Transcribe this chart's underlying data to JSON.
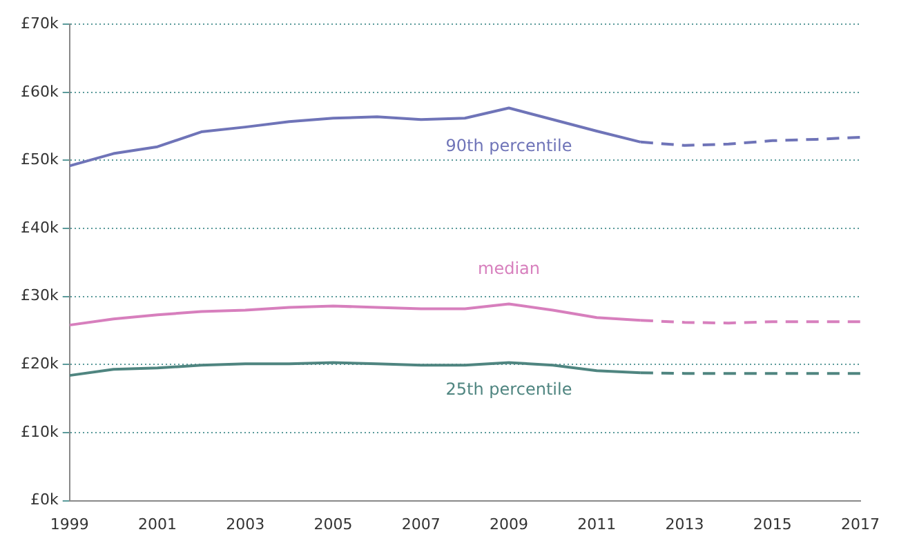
{
  "chart_data": {
    "type": "line",
    "xlim": [
      1999,
      2017
    ],
    "xticks": [
      1999,
      2001,
      2003,
      2005,
      2007,
      2009,
      2011,
      2013,
      2015,
      2017
    ],
    "ylim": [
      0,
      70
    ],
    "yticks": [
      {
        "value": 0,
        "label": "£0k"
      },
      {
        "value": 10,
        "label": "£10k"
      },
      {
        "value": 20,
        "label": "£20k"
      },
      {
        "value": 30,
        "label": "£30k"
      },
      {
        "value": 40,
        "label": "£40k"
      },
      {
        "value": 50,
        "label": "£50k"
      },
      {
        "value": 60,
        "label": "£60k"
      },
      {
        "value": 70,
        "label": "£70k"
      }
    ],
    "grid": "y",
    "legend": false,
    "marker": "none",
    "series": [
      {
        "name": "90th percentile",
        "color": "#6f74b8",
        "x": [
          1999,
          2000,
          2001,
          2002,
          2003,
          2004,
          2005,
          2006,
          2007,
          2008,
          2009,
          2010,
          2011,
          2012
        ],
        "values": [
          49.2,
          51,
          52,
          54.2,
          54.9,
          55.7,
          56.2,
          56.4,
          56,
          56.2,
          57.7,
          56,
          54.3,
          52.7
        ],
        "line_style": "solid"
      },
      {
        "name": "median",
        "color": "#d77fbd",
        "x": [
          1999,
          2000,
          2001,
          2002,
          2003,
          2004,
          2005,
          2006,
          2007,
          2008,
          2009,
          2010,
          2011,
          2012
        ],
        "values": [
          25.8,
          26.7,
          27.3,
          27.8,
          28,
          28.4,
          28.6,
          28.4,
          28.2,
          28.2,
          28.9,
          28,
          26.9,
          26.5
        ],
        "line_style": "solid"
      },
      {
        "name": "25th percentile",
        "color": "#4f8580",
        "x": [
          1999,
          2000,
          2001,
          2002,
          2003,
          2004,
          2005,
          2006,
          2007,
          2008,
          2009,
          2010,
          2011,
          2012
        ],
        "values": [
          18.4,
          19.3,
          19.5,
          19.9,
          20.1,
          20.1,
          20.3,
          20.1,
          19.9,
          19.9,
          20.3,
          19.9,
          19.1,
          18.8
        ],
        "line_style": "solid"
      },
      {
        "color": "#6f74b8",
        "x": [
          2012,
          2013,
          2014,
          2015,
          2016,
          2017
        ],
        "values": [
          52.7,
          52.2,
          52.4,
          52.9,
          53.1,
          53.4
        ],
        "line_style": "dashed"
      },
      {
        "color": "#d77fbd",
        "x": [
          2012,
          2013,
          2014,
          2015,
          2016,
          2017
        ],
        "values": [
          26.5,
          26.2,
          26.1,
          26.3,
          26.3,
          26.3
        ],
        "line_style": "dashed"
      },
      {
        "color": "#4f8580",
        "x": [
          2012,
          2013,
          2014,
          2015,
          2016,
          2017
        ],
        "values": [
          18.8,
          18.7,
          18.7,
          18.7,
          18.7,
          18.7
        ],
        "line_style": "dashed"
      }
    ]
  }
}
